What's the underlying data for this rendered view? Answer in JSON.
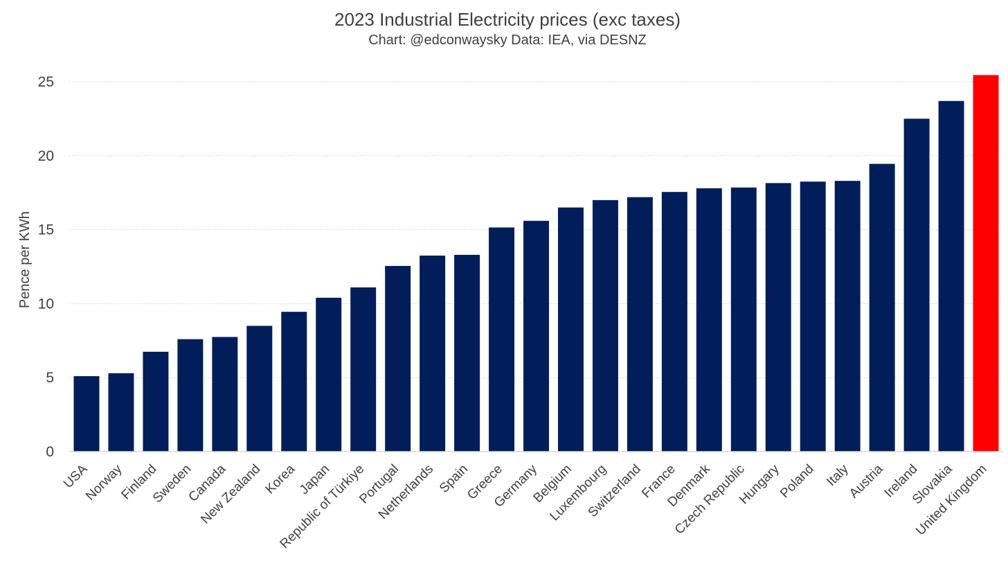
{
  "chart_data": {
    "type": "bar",
    "title": "2023 Industrial Electricity prices (exc taxes)",
    "subtitle": "Chart: @edconwaysky Data: IEA, via DESNZ",
    "xlabel": "",
    "ylabel": "Pence per KWh",
    "ylim": [
      0,
      25
    ],
    "yticks": [
      0,
      5,
      10,
      15,
      20,
      25
    ],
    "grid": true,
    "categories": [
      "USA",
      "Norway",
      "Finland",
      "Sweden",
      "Canada",
      "New Zealand",
      "Korea",
      "Japan",
      "Republic of Türkiye",
      "Portugal",
      "Netherlands",
      "Spain",
      "Greece",
      "Germany",
      "Belgium",
      "Luxembourg",
      "Switzerland",
      "France",
      "Denmark",
      "Czech Republic",
      "Hungary",
      "Poland",
      "Italy",
      "Austria",
      "Ireland",
      "Slovakia",
      "United Kingdom"
    ],
    "values": [
      5.1,
      5.3,
      6.75,
      7.6,
      7.75,
      8.5,
      9.45,
      10.4,
      11.1,
      12.55,
      13.25,
      13.3,
      15.15,
      15.6,
      16.5,
      17.0,
      17.2,
      17.55,
      17.8,
      17.85,
      18.15,
      18.25,
      18.3,
      19.45,
      22.5,
      23.7,
      25.45
    ],
    "colors": {
      "default": "#021e5a",
      "highlight": "#ff0000"
    },
    "highlight_category": "United Kingdom"
  }
}
